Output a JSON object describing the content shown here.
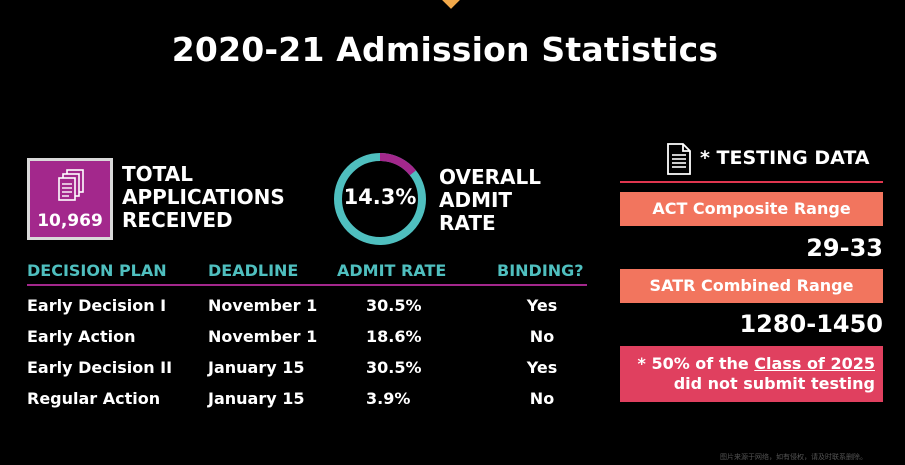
{
  "title": "2020-21 Admission Statistics",
  "applications": {
    "value": "10,969",
    "label_lines": [
      "TOTAL",
      "APPLICATIONS",
      "RECEIVED"
    ],
    "box_color": "#a3288c",
    "icon": "documents-icon"
  },
  "admit_rate": {
    "value": "14.3%",
    "fraction": 0.143,
    "label_lines": [
      "OVERALL",
      "ADMIT",
      "RATE"
    ],
    "ring_color": "#4fbfbf",
    "segment_color": "#a3288c"
  },
  "plans": {
    "headers": [
      "DECISION PLAN",
      "DEADLINE",
      "ADMIT RATE",
      "BINDING?"
    ],
    "rows": [
      [
        "Early Decision I",
        "November 1",
        "30.5%",
        "Yes"
      ],
      [
        "Early Action",
        "November 1",
        "18.6%",
        "No"
      ],
      [
        "Early Decision II",
        "January 15",
        "30.5%",
        "Yes"
      ],
      [
        "Regular Action",
        "January 15",
        "3.9%",
        "No"
      ]
    ]
  },
  "testing": {
    "title": "* TESTING DATA",
    "icon": "document-icon",
    "act_label": "ACT Composite Range",
    "act_range": "29-33",
    "sat_label": "SATR Combined Range",
    "sat_range": "1280-1450",
    "note_prefix": "* 50% of the ",
    "note_link": "Class of 2025",
    "note_suffix": "did not submit testing"
  },
  "footer": "图片来源于网络，如有侵权，请及时联系删除。",
  "colors": {
    "background": "#000000",
    "teal": "#4fbfbf",
    "magenta": "#a3288c",
    "salmon": "#f2755e",
    "pink": "#e0405f"
  }
}
